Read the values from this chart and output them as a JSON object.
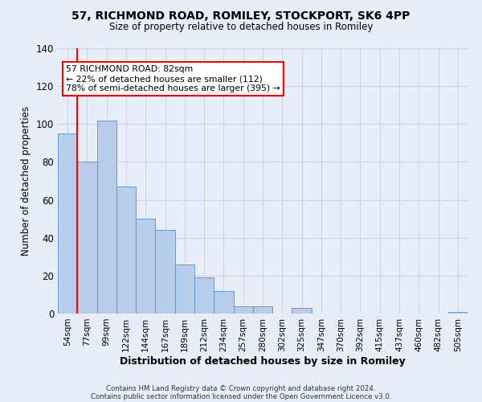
{
  "title": "57, RICHMOND ROAD, ROMILEY, STOCKPORT, SK6 4PP",
  "subtitle": "Size of property relative to detached houses in Romiley",
  "xlabel": "Distribution of detached houses by size in Romiley",
  "ylabel": "Number of detached properties",
  "bar_labels": [
    "54sqm",
    "77sqm",
    "99sqm",
    "122sqm",
    "144sqm",
    "167sqm",
    "189sqm",
    "212sqm",
    "234sqm",
    "257sqm",
    "280sqm",
    "302sqm",
    "325sqm",
    "347sqm",
    "370sqm",
    "392sqm",
    "415sqm",
    "437sqm",
    "460sqm",
    "482sqm",
    "505sqm"
  ],
  "bar_heights": [
    95,
    80,
    102,
    67,
    50,
    44,
    26,
    19,
    12,
    4,
    4,
    0,
    3,
    0,
    0,
    0,
    0,
    0,
    0,
    0,
    1
  ],
  "bar_color": "#b8ccec",
  "bar_edge_color": "#6699cc",
  "grid_color": "#c8d4e8",
  "background_color": "#e8eef8",
  "vline_x": 1,
  "vline_color": "red",
  "annotation_text": "57 RICHMOND ROAD: 82sqm\n← 22% of detached houses are smaller (112)\n78% of semi-detached houses are larger (395) →",
  "annotation_box_color": "white",
  "annotation_box_edge_color": "red",
  "ylim": [
    0,
    140
  ],
  "yticks": [
    0,
    20,
    40,
    60,
    80,
    100,
    120,
    140
  ],
  "footer_line1": "Contains HM Land Registry data © Crown copyright and database right 2024.",
  "footer_line2": "Contains public sector information licensed under the Open Government Licence v3.0."
}
